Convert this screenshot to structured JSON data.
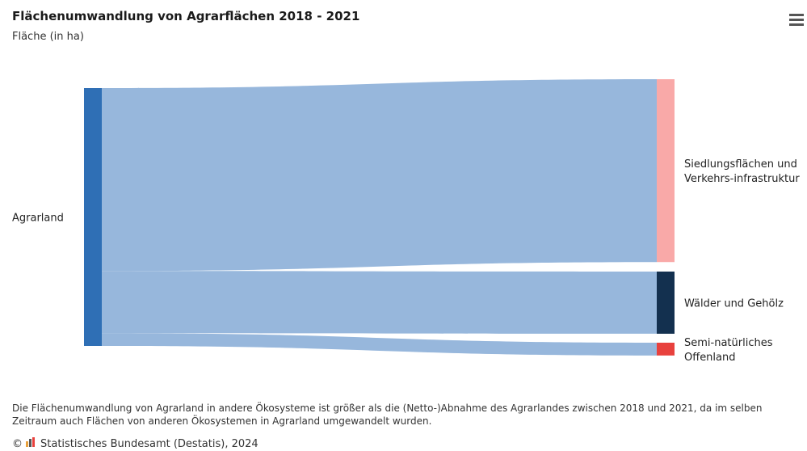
{
  "title": "Flächenumwandlung von Agrarflächen 2018 - 2021",
  "subtitle": "Fläche (in ha)",
  "caption": "Die Flächenumwandlung von Agrarland in andere Ökosysteme ist größer als die (Netto-)Abnahme des Agrarlandes zwischen 2018 und 2021, da im selben Zeitraum auch Flächen von anderen Ökosystemen in Agrarland umgewandelt wurden.",
  "credits": {
    "copyright": "©",
    "text": "Statistisches Bundesamt (Destatis), 2024"
  },
  "menu_icon": "hamburger-menu-icon",
  "colors": {
    "source": "#2f6fb5",
    "link": "#97b7dc",
    "siedlung": "#f9a9a8",
    "waelder": "#13304f",
    "offenland": "#e8413d"
  },
  "chart_data": {
    "type": "sankey",
    "title": "Flächenumwandlung von Agrarflächen 2018 - 2021",
    "subtitle": "Fläche (in ha)",
    "nodes": [
      {
        "id": "agrar",
        "label": "Agrarland",
        "side": "left",
        "color": "#2f6fb5"
      },
      {
        "id": "siedlung",
        "label": "Siedlungsflächen und Verkehrs-infrastruktur",
        "label_lines": [
          "Siedlungsflächen und",
          "Verkehrs-infrastruktur"
        ],
        "side": "right",
        "color": "#f9a9a8"
      },
      {
        "id": "waelder",
        "label": "Wälder und Gehölz",
        "label_lines": [
          "Wälder und Gehölz"
        ],
        "side": "right",
        "color": "#13304f"
      },
      {
        "id": "offenland",
        "label": "Semi-natürliches Offenland",
        "label_lines": [
          "Semi-natürliches",
          "Offenland"
        ],
        "side": "right",
        "color": "#e8413d"
      }
    ],
    "links": [
      {
        "from": "agrar",
        "to": "siedlung",
        "value": 100
      },
      {
        "from": "agrar",
        "to": "waelder",
        "value": 34
      },
      {
        "from": "agrar",
        "to": "offenland",
        "value": 7
      }
    ]
  }
}
